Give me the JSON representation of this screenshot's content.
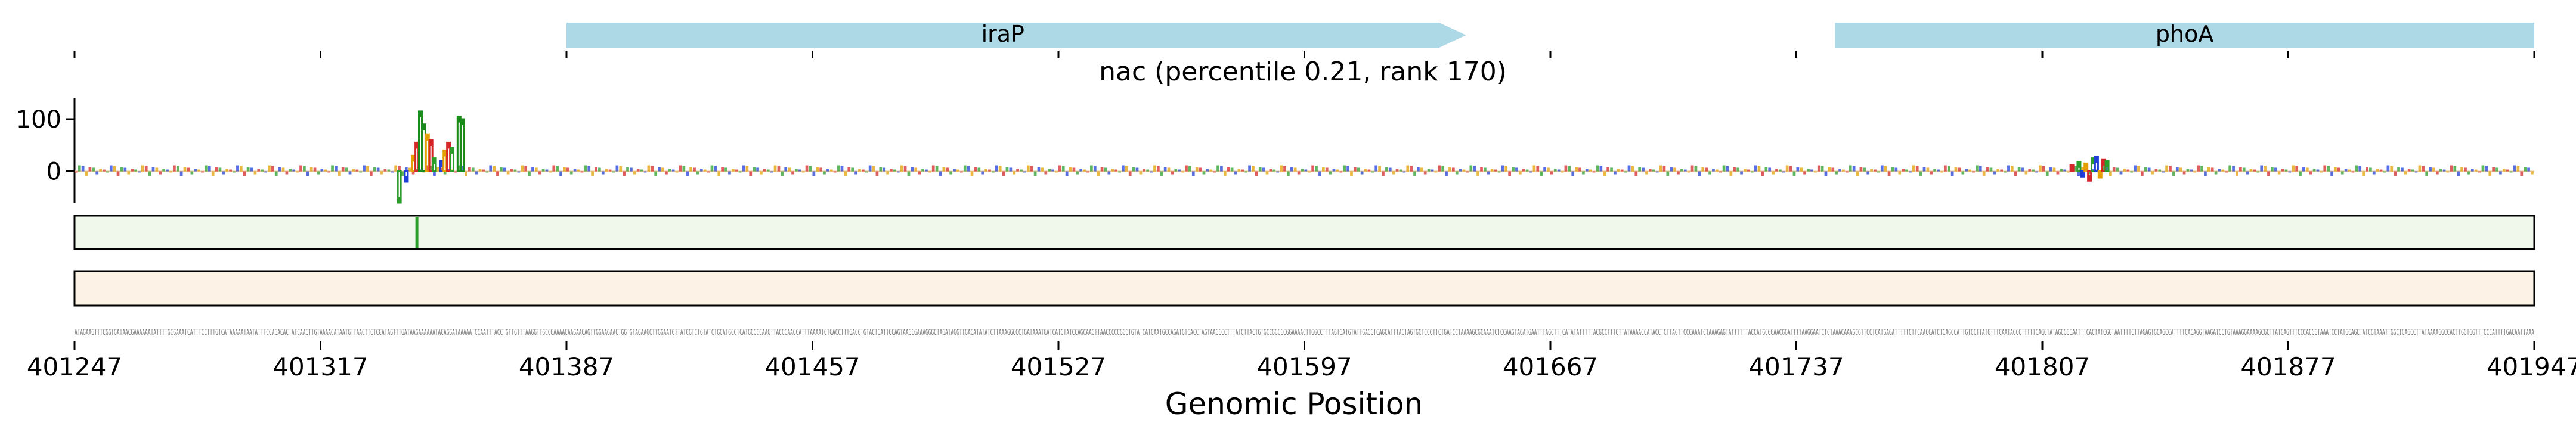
{
  "chart_data": {
    "type": "genome-track",
    "title": "nac (percentile 0.21, rank 170)",
    "xlabel": "Genomic Position",
    "xlim": [
      401247,
      401947
    ],
    "xticks": [
      401247,
      401317,
      401387,
      401457,
      401527,
      401597,
      401667,
      401737,
      401807,
      401877,
      401947
    ],
    "genes": [
      {
        "name": "iraP",
        "start": 401387,
        "end": 401643,
        "strand": "+",
        "color": "#add8e6"
      },
      {
        "name": "phoA",
        "start": 401748,
        "end": 401947,
        "strand": "+",
        "color": "#add8e6"
      }
    ],
    "logo_track": {
      "ylim": [
        -60,
        140
      ],
      "yticks": [
        0,
        100
      ],
      "peaks": [
        {
          "position": 401339,
          "value": -60
        },
        {
          "position": 401341,
          "value": -20
        },
        {
          "position": 401343,
          "value": 30
        },
        {
          "position": 401344,
          "value": 55
        },
        {
          "position": 401345,
          "value": 115
        },
        {
          "position": 401346,
          "value": 90
        },
        {
          "position": 401347,
          "value": 70
        },
        {
          "position": 401348,
          "value": 60
        },
        {
          "position": 401349,
          "value": 25
        },
        {
          "position": 401351,
          "value": 20
        },
        {
          "position": 401352,
          "value": 40
        },
        {
          "position": 401353,
          "value": 55
        },
        {
          "position": 401354,
          "value": 45
        },
        {
          "position": 401356,
          "value": 105
        },
        {
          "position": 401357,
          "value": 100
        },
        {
          "position": 401815,
          "value": 12
        },
        {
          "position": 401817,
          "value": 18
        },
        {
          "position": 401818,
          "value": -10
        },
        {
          "position": 401819,
          "value": 15
        },
        {
          "position": 401820,
          "value": -18
        },
        {
          "position": 401821,
          "value": 25
        },
        {
          "position": 401822,
          "value": 28
        },
        {
          "position": 401823,
          "value": -12
        },
        {
          "position": 401824,
          "value": 22
        },
        {
          "position": 401825,
          "value": 20
        }
      ]
    },
    "track2": {
      "color": "#f0f8ec",
      "highlight_position": 401344,
      "highlight_color": "#2e9e2e"
    },
    "track3": {
      "color": "#fdf2e6"
    },
    "sequence": "ATAGAAGTTTCGGTGATAACGAAAAAATATTTTGCGAAATCATTTCCTTTGTCATAAAAATAATATTTCCAGACACTATCAAGTTGTAAAACATAATGTTAACTTCTCCATAGTTTGATAAGAAAAAATACAGGATAAAAATCCAATTTACCTGTTGTTTAAGGTTGCCGAAAACAAGAAGAGTTGGAAGAACTGGTGTAGAAGCTTGGAATGTTATCGTCTGTATCTGCATGCCTCATGCGCCAAGTTACCGAAGCATTTAAAATCTGACCTTTGACCTGTACTGATTGCAGTAAGCGAAAGGGCTAGATAGGTTGACATATATCTTAAAGGCCCTGATAAATGATCATGTATCCAGCAAGTTAACCCCCGGGTGTATCATCAATGCCAGATGTCACCTAGTAAGCCCTTTATCTTACTGTGCCGGCCCGGAAAACTTGGCCTTTAGTGATGTATTGAGCTCAGCATTTACTAGTGCTCCGTTCTGATCCTAAAAGCGCAAATGTCCAAGTAGATGAATTTAGCTTTCATATATTTTTACGCCTTTGTTATAAAACCATACCTCTTACTTCCCAAATCTAAAGAGTATTTTTTACCATGCGGAACGGATTTTAAGGAATCTCTAAACAAAGCGTTCCTCATGAGATTTTTCTTCAACCATCTGAGCCATTGTCCTTATGTTTCAATAGCCTTTTTCAGCTATAGCGGCAATTTCACTATCGCTAATTTTCTTAGAGTGCAGCCATTTTCACAGGTAAGATCCTGTAAAGGAAAAGCGCTTATCAGTTTCCCACGCTAAATCCTATGCAGCTATCGTAAATTGGCTCAGCCTTATAAAAGGCCACTTGGTGGTTTCCCATTTTGACAATTAAA"
  }
}
